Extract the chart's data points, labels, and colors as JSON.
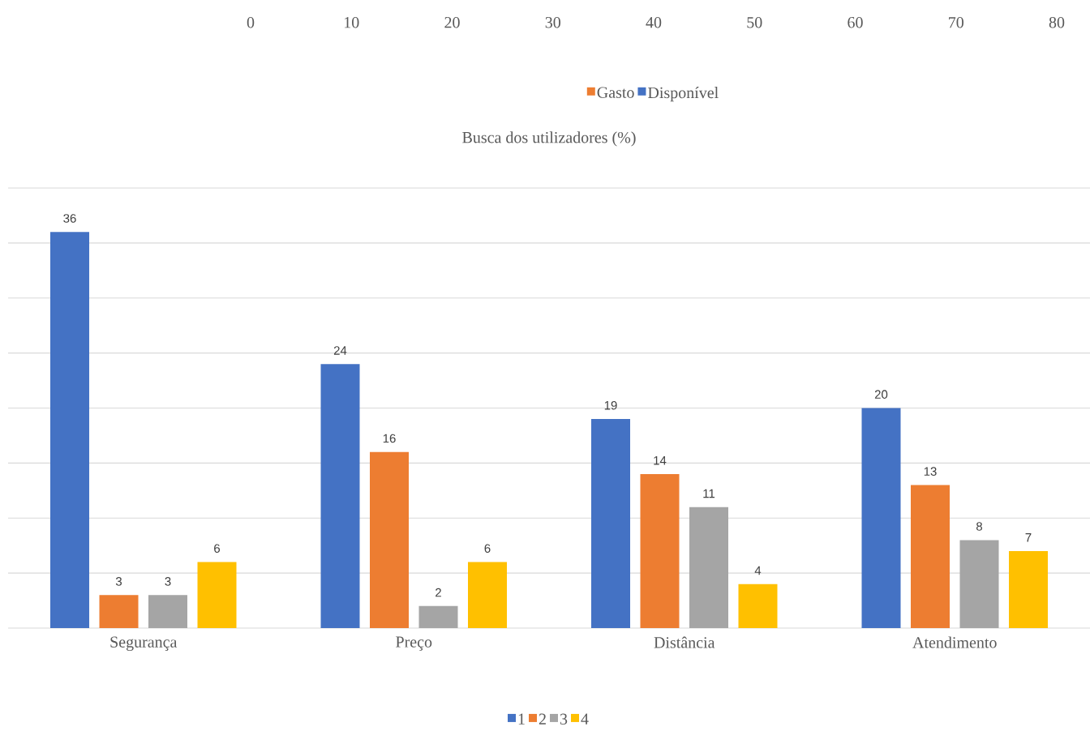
{
  "chart_data": [
    {
      "type": "bar",
      "orientation": "horizontal",
      "categories": [
        null
      ],
      "xlim": [
        0,
        80
      ],
      "xticks": [
        0,
        10,
        20,
        30,
        40,
        50,
        60,
        70,
        80
      ],
      "tick_labels": "x",
      "legend": "top",
      "series": [
        {
          "name": "Gasto",
          "color": "#ed7d31",
          "values": [
            null
          ]
        },
        {
          "name": "Disponível",
          "color": "#4472c4",
          "values": [
            null
          ]
        }
      ]
    },
    {
      "type": "bar",
      "title": "Busca dos utilizadores (%)",
      "categories": [
        "Segurança",
        "Preço",
        "Distância",
        "Atendimento"
      ],
      "ylim": [
        0,
        40
      ],
      "yticks": [
        {
          "value": 0,
          "label": null
        },
        {
          "value": 5,
          "label": null
        },
        {
          "value": 10,
          "label": null
        },
        {
          "value": 15,
          "label": null
        },
        {
          "value": 20,
          "label": null
        },
        {
          "value": 25,
          "label": null
        },
        {
          "value": 30,
          "label": null
        },
        {
          "value": 35,
          "label": null
        },
        {
          "value": 40,
          "label": null
        }
      ],
      "grid": "y",
      "legend": "bottom",
      "data_labels": true,
      "tick_labels": "x",
      "series": [
        {
          "name": "1",
          "color": "#4472c4",
          "values": [
            36,
            24,
            19,
            20
          ]
        },
        {
          "name": "2",
          "color": "#ed7d31",
          "values": [
            3,
            16,
            14,
            13
          ]
        },
        {
          "name": "3",
          "color": "#a5a5a5",
          "values": [
            3,
            2,
            11,
            8
          ]
        },
        {
          "name": "4",
          "color": "#ffc000",
          "values": [
            6,
            6,
            4,
            7
          ]
        }
      ]
    }
  ]
}
